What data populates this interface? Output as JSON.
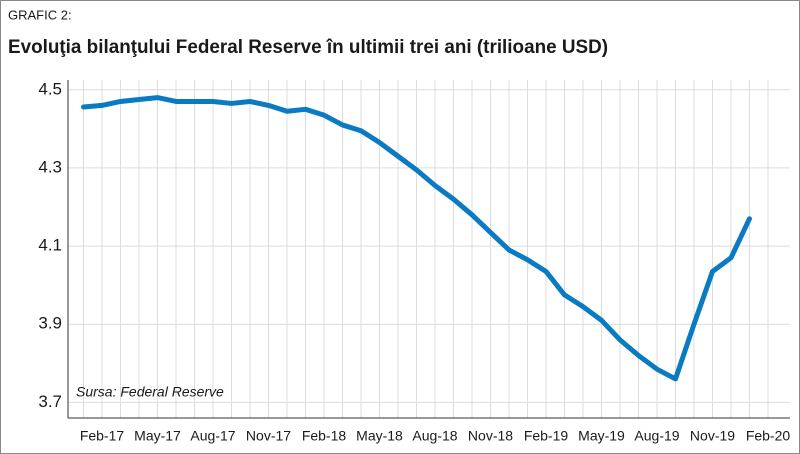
{
  "chart_data": {
    "type": "line",
    "label": "GRAFIC 2:",
    "title": "Evoluţia bilanţului Federal Reserve în ultimii trei ani (trilioane USD)",
    "annotation": "Sursa: Federal Reserve",
    "categories": [
      null,
      "Feb-17",
      null,
      null,
      "May-17",
      null,
      null,
      "Aug-17",
      null,
      null,
      "Nov-17",
      null,
      null,
      "Feb-18",
      null,
      null,
      "May-18",
      null,
      null,
      "Aug-18",
      null,
      null,
      "Nov-18",
      null,
      null,
      "Feb-19",
      null,
      null,
      "May-19",
      null,
      null,
      "Aug-19",
      null,
      null,
      "Nov-19",
      null,
      null,
      "Feb-20"
    ],
    "series": [
      {
        "name": "Federal Reserve",
        "color": "#0a7bc2",
        "values": [
          4.456,
          4.46,
          4.47,
          4.475,
          4.48,
          4.47,
          4.47,
          4.47,
          4.465,
          4.47,
          4.46,
          4.445,
          4.45,
          4.435,
          4.41,
          4.395,
          4.365,
          4.33,
          4.295,
          4.255,
          4.22,
          4.18,
          4.135,
          4.09,
          4.065,
          4.035,
          3.975,
          3.945,
          3.91,
          3.86,
          3.82,
          3.785,
          3.76,
          3.9,
          4.035,
          4.07,
          4.17,
          null
        ]
      }
    ],
    "ylim": [
      3.66,
      4.525
    ],
    "yticks": [
      3.7,
      3.9,
      4.1,
      4.3,
      4.5
    ],
    "grid": true
  }
}
